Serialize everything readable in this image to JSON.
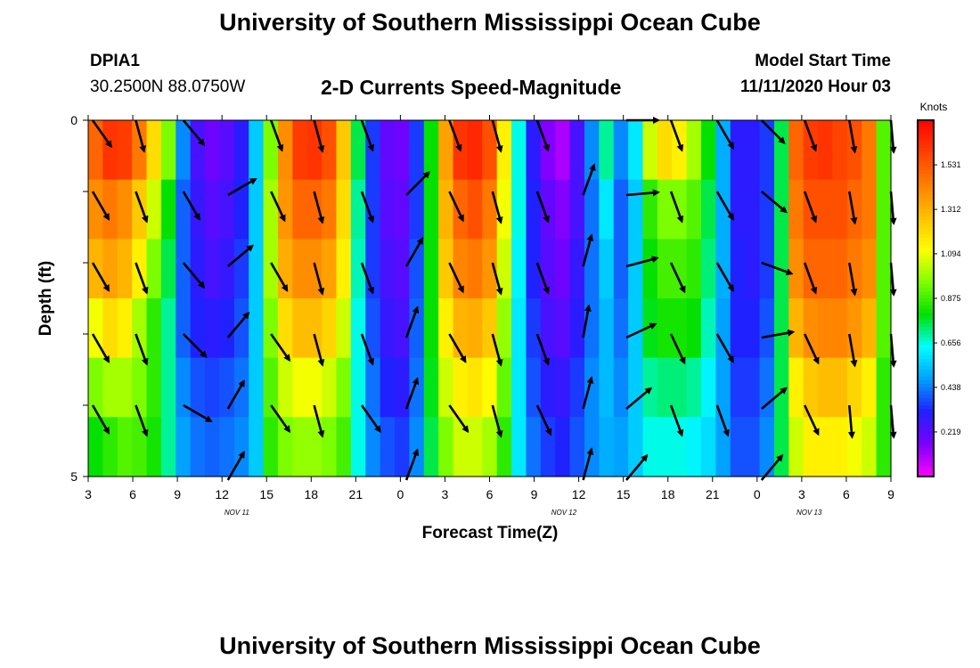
{
  "header": {
    "title_top": "University of Southern Mississippi Ocean Cube",
    "title_bottom": "University of Southern Mississippi Ocean Cube",
    "station_id": "DPIA1",
    "station_coords": "30.2500N 88.0750W",
    "plot_title": "2-D Currents Speed-Magnitude",
    "model_start_label": "Model Start Time",
    "model_start_value": "11/11/2020 Hour 03"
  },
  "chart_data": {
    "type": "heatmap",
    "title": "2-D Currents Speed-Magnitude",
    "xlabel": "Forecast Time(Z)",
    "ylabel": "Depth (ft)",
    "x_tick_labels": [
      "3",
      "6",
      "9",
      "12",
      "15",
      "18",
      "21",
      "0",
      "3",
      "6",
      "9",
      "12",
      "15",
      "18",
      "21",
      "0",
      "3",
      "6",
      "9"
    ],
    "x_hours": [
      3,
      6,
      9,
      12,
      15,
      18,
      21,
      24,
      27,
      30,
      33,
      36,
      39,
      42,
      45,
      48,
      51,
      54,
      57
    ],
    "date_labels": [
      {
        "label": "NOV 11",
        "hour": 13
      },
      {
        "label": "NOV 12",
        "hour": 35
      },
      {
        "label": "NOV 13",
        "hour": 51.5
      }
    ],
    "xlim": [
      3,
      57
    ],
    "ylim": [
      5,
      0
    ],
    "y_tick_labels": [
      "0",
      "5"
    ],
    "depth_levels": [
      0,
      1,
      2,
      3,
      4,
      5
    ],
    "speed_colorbar": {
      "unit": "Knots",
      "ticks": [
        1.531,
        1.312,
        1.094,
        0.875,
        0.656,
        0.438,
        0.219
      ],
      "tick_labels": [
        "1.531",
        "1.312",
        "1.094",
        "0.875",
        "0.656",
        "0.438",
        "0.219"
      ],
      "range": [
        0.0,
        1.75
      ],
      "colors": [
        "#ff00ff",
        "#7a00ff",
        "#2020ff",
        "#00a0ff",
        "#00ffff",
        "#00e000",
        "#80ff00",
        "#ffff00",
        "#ffc000",
        "#ff8000",
        "#ff4000",
        "#ff0000"
      ]
    },
    "speed_rows": [
      [
        1.5,
        1.62,
        1.6,
        1.45,
        1.2,
        0.95,
        0.45,
        0.25,
        0.18,
        0.22,
        0.3,
        0.55,
        0.95,
        1.4,
        1.6,
        1.62,
        1.55,
        1.25,
        0.75,
        0.35,
        0.2,
        0.18,
        0.35,
        0.8,
        1.35,
        1.62,
        1.65,
        1.55,
        1.15,
        0.65,
        0.3,
        0.15,
        0.1,
        0.25,
        0.45,
        0.7,
        0.45,
        0.6,
        1.05,
        1.2,
        1.15,
        1.0,
        0.8,
        0.5,
        0.3,
        0.3,
        0.35,
        0.75,
        1.5,
        1.6,
        1.62,
        1.58,
        1.55,
        1.45,
        0.9
      ],
      [
        1.4,
        1.45,
        1.4,
        1.25,
        1.05,
        0.8,
        0.4,
        0.28,
        0.22,
        0.25,
        0.32,
        0.55,
        1.0,
        1.38,
        1.5,
        1.5,
        1.45,
        1.2,
        0.7,
        0.35,
        0.22,
        0.2,
        0.35,
        0.8,
        1.3,
        1.5,
        1.55,
        1.45,
        1.1,
        0.65,
        0.32,
        0.2,
        0.15,
        0.25,
        0.42,
        0.6,
        0.4,
        0.55,
        0.85,
        0.95,
        0.95,
        0.9,
        0.75,
        0.5,
        0.3,
        0.3,
        0.35,
        0.75,
        1.45,
        1.55,
        1.55,
        1.55,
        1.5,
        1.45,
        0.9
      ],
      [
        1.3,
        1.35,
        1.3,
        1.15,
        0.95,
        0.75,
        0.4,
        0.3,
        0.25,
        0.28,
        0.35,
        0.55,
        1.0,
        1.32,
        1.4,
        1.4,
        1.35,
        1.15,
        0.68,
        0.35,
        0.25,
        0.22,
        0.38,
        0.8,
        1.25,
        1.42,
        1.45,
        1.38,
        1.05,
        0.62,
        0.32,
        0.22,
        0.18,
        0.28,
        0.42,
        0.55,
        0.4,
        0.55,
        0.8,
        0.88,
        0.88,
        0.85,
        0.72,
        0.5,
        0.32,
        0.3,
        0.35,
        0.75,
        1.4,
        1.5,
        1.5,
        1.5,
        1.45,
        1.4,
        0.9
      ],
      [
        1.1,
        1.2,
        1.15,
        1.0,
        0.85,
        0.7,
        0.4,
        0.32,
        0.3,
        0.32,
        0.38,
        0.55,
        0.95,
        1.2,
        1.28,
        1.28,
        1.22,
        1.05,
        0.65,
        0.38,
        0.28,
        0.25,
        0.4,
        0.8,
        1.15,
        1.3,
        1.32,
        1.25,
        0.98,
        0.6,
        0.35,
        0.25,
        0.22,
        0.3,
        0.42,
        0.52,
        0.42,
        0.55,
        0.78,
        0.82,
        0.82,
        0.8,
        0.68,
        0.48,
        0.32,
        0.32,
        0.38,
        0.75,
        1.3,
        1.4,
        1.42,
        1.42,
        1.38,
        1.3,
        0.9
      ],
      [
        0.95,
        1.0,
        1.0,
        0.95,
        0.85,
        0.7,
        0.45,
        0.38,
        0.36,
        0.38,
        0.42,
        0.55,
        0.9,
        1.05,
        1.1,
        1.1,
        1.05,
        0.95,
        0.65,
        0.42,
        0.32,
        0.3,
        0.42,
        0.78,
        1.05,
        1.15,
        1.18,
        1.12,
        0.92,
        0.6,
        0.38,
        0.3,
        0.28,
        0.35,
        0.45,
        0.52,
        0.45,
        0.55,
        0.7,
        0.72,
        0.72,
        0.7,
        0.62,
        0.48,
        0.35,
        0.35,
        0.42,
        0.75,
        1.15,
        1.25,
        1.28,
        1.28,
        1.22,
        1.15,
        0.85
      ],
      [
        0.8,
        0.85,
        0.9,
        0.88,
        0.82,
        0.7,
        0.48,
        0.42,
        0.4,
        0.42,
        0.45,
        0.55,
        0.85,
        0.95,
        0.98,
        0.98,
        0.95,
        0.88,
        0.65,
        0.45,
        0.38,
        0.35,
        0.45,
        0.75,
        0.95,
        1.05,
        1.05,
        1.0,
        0.85,
        0.6,
        0.42,
        0.35,
        0.32,
        0.38,
        0.45,
        0.5,
        0.48,
        0.55,
        0.65,
        0.65,
        0.65,
        0.62,
        0.58,
        0.48,
        0.38,
        0.38,
        0.45,
        0.75,
        1.05,
        1.15,
        1.15,
        1.15,
        1.1,
        1.05,
        0.85
      ]
    ],
    "vector_hours": [
      3.3,
      6.2,
      9.4,
      12.4,
      15.3,
      18.2,
      21.4,
      24.4,
      27.3,
      30.2,
      33.2,
      36.3,
      39.2,
      42.2,
      45.3,
      48.3,
      51.2,
      54.2,
      57.0
    ],
    "vector_depths": [
      0,
      1,
      2,
      3,
      4,
      5
    ],
    "vector_dirs_deg": [
      [
        145,
        165,
        140,
        null,
        160,
        165,
        160,
        null,
        160,
        165,
        160,
        null,
        90,
        160,
        150,
        135,
        160,
        170,
        175
      ],
      [
        150,
        160,
        150,
        60,
        155,
        165,
        160,
        45,
        155,
        165,
        160,
        20,
        85,
        160,
        150,
        130,
        160,
        170,
        175
      ],
      [
        150,
        160,
        140,
        50,
        150,
        165,
        160,
        30,
        155,
        165,
        160,
        15,
        75,
        155,
        150,
        110,
        160,
        170,
        175
      ],
      [
        150,
        160,
        135,
        40,
        145,
        165,
        160,
        20,
        150,
        165,
        160,
        10,
        65,
        155,
        150,
        80,
        155,
        170,
        175
      ],
      [
        150,
        160,
        120,
        30,
        145,
        165,
        145,
        20,
        145,
        165,
        155,
        15,
        50,
        160,
        160,
        50,
        155,
        175,
        175
      ],
      [
        null,
        null,
        null,
        30,
        null,
        null,
        null,
        20,
        null,
        null,
        null,
        15,
        40,
        null,
        null,
        40,
        null,
        null,
        null
      ]
    ]
  }
}
